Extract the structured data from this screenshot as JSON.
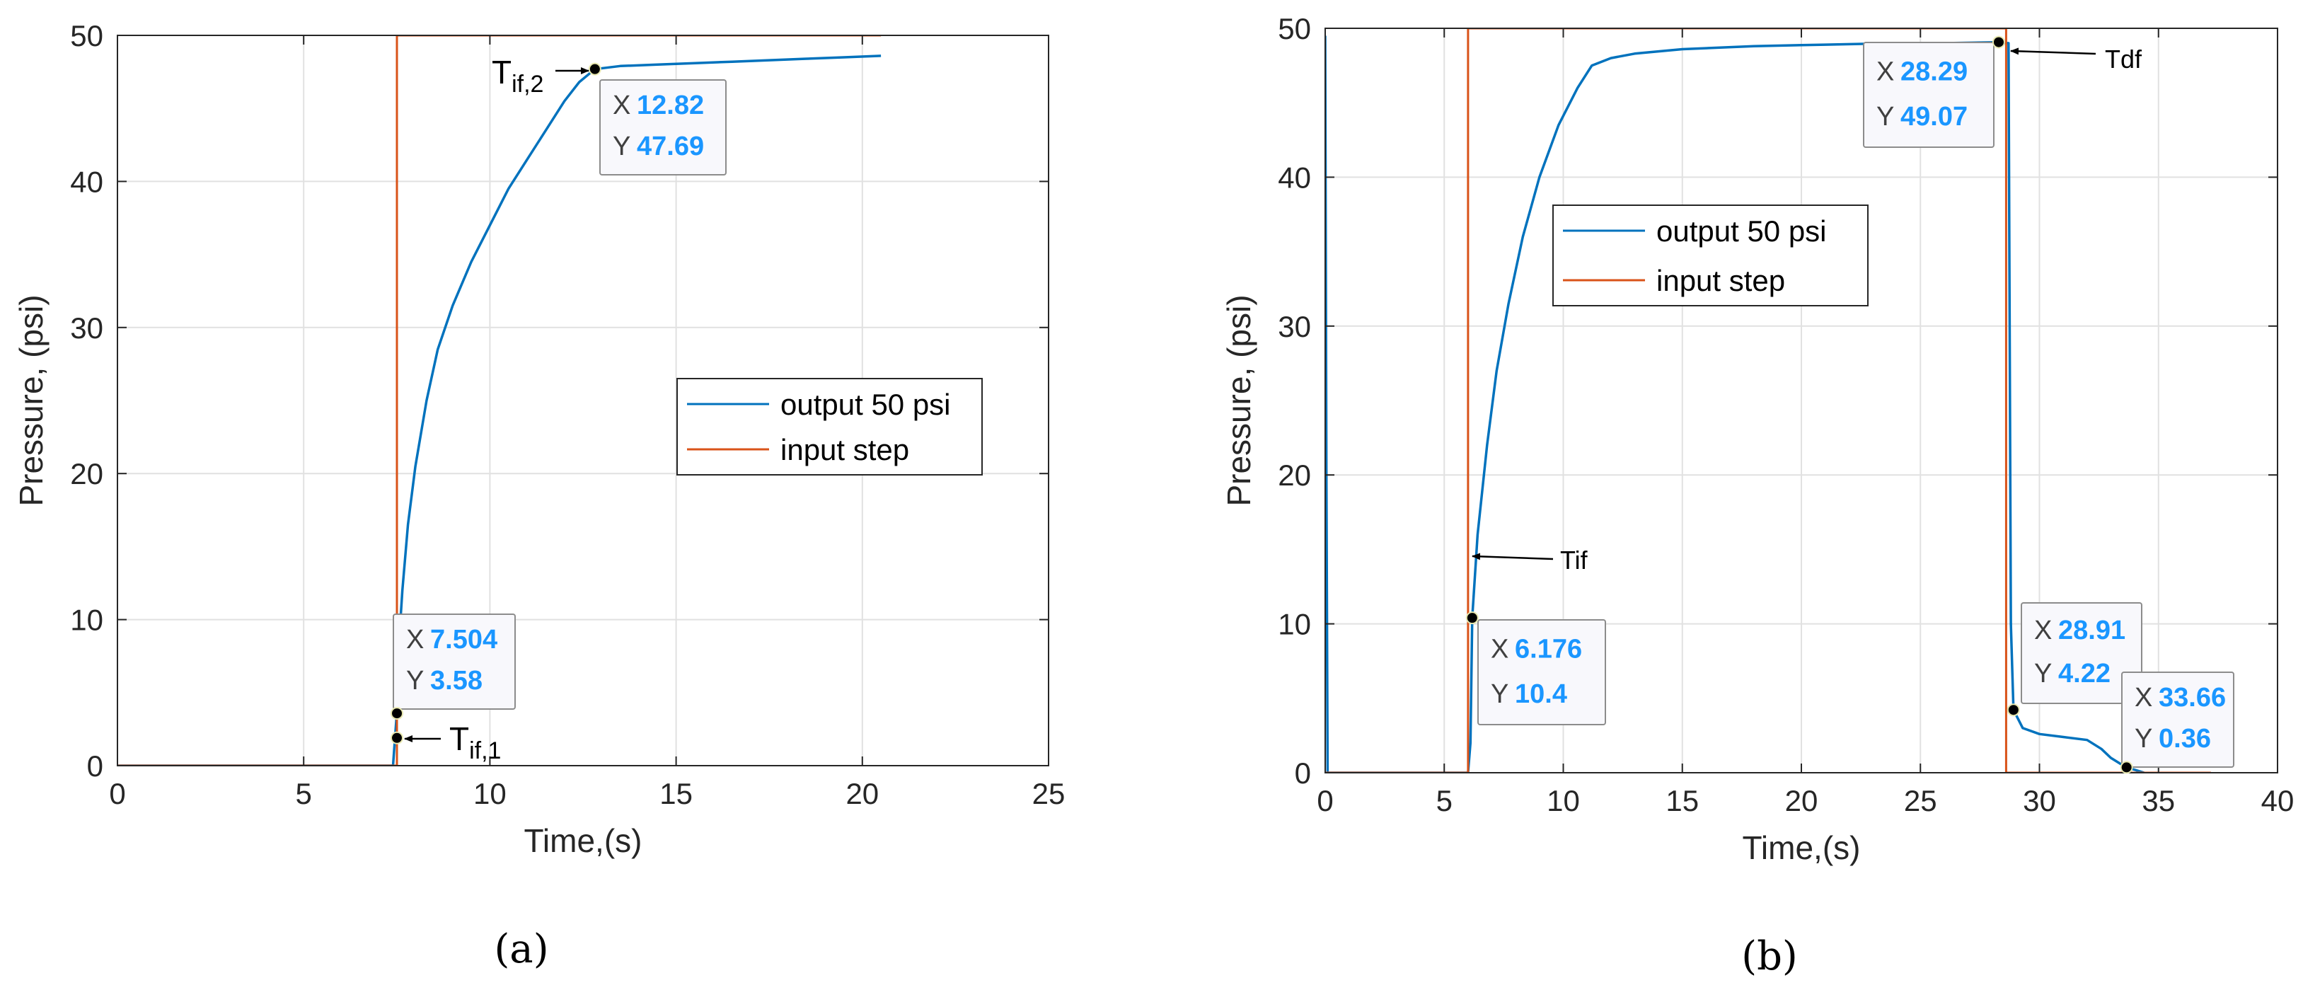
{
  "chart_data": [
    {
      "type": "line",
      "panel_label": "(a)",
      "xlabel": "Time,(s)",
      "ylabel": "Pressure, (psi)",
      "xlim": [
        0,
        25
      ],
      "ylim": [
        0,
        50
      ],
      "xticks": [
        0,
        5,
        10,
        15,
        20,
        25
      ],
      "yticks": [
        0,
        10,
        20,
        30,
        40,
        50
      ],
      "grid": true,
      "legend_position": "center-right",
      "colors": {
        "output": "#0072BD",
        "input": "#D95319",
        "datatip_value": "#1a96ff"
      },
      "series": [
        {
          "name": "output 50 psi",
          "x": [
            0,
            7.4,
            7.5,
            7.55,
            7.65,
            7.8,
            8.0,
            8.3,
            8.6,
            9.0,
            9.5,
            10.0,
            10.5,
            11.0,
            11.5,
            12.0,
            12.4,
            12.82,
            13.5,
            14.5,
            15.5,
            16.5,
            17.5,
            18.5,
            19.5,
            20.5
          ],
          "y": [
            0,
            0,
            3.58,
            8.0,
            12.0,
            16.5,
            20.5,
            25.0,
            28.5,
            31.5,
            34.5,
            37.0,
            39.5,
            41.5,
            43.5,
            45.5,
            46.8,
            47.69,
            47.9,
            48.0,
            48.1,
            48.2,
            48.3,
            48.4,
            48.5,
            48.6
          ]
        },
        {
          "name": "input step",
          "x": [
            0,
            7.504,
            7.504,
            20.5
          ],
          "y": [
            0,
            0,
            50,
            50
          ]
        }
      ],
      "datatips": [
        {
          "x_label": "X",
          "x": "12.82",
          "y_label": "Y",
          "y": "47.69"
        },
        {
          "x_label": "X",
          "x": "7.504",
          "y_label": "Y",
          "y": "3.58"
        }
      ],
      "markers": [
        {
          "x": 12.82,
          "y": 47.69
        },
        {
          "x": 7.504,
          "y": 3.58
        },
        {
          "x": 7.504,
          "y": 1.9
        }
      ],
      "annotations": [
        {
          "base": "T",
          "sub": "if,2"
        },
        {
          "base": "T",
          "sub": "if,1"
        }
      ]
    },
    {
      "type": "line",
      "panel_label": "(b)",
      "xlabel": "Time,(s)",
      "ylabel": "Pressure, (psi)",
      "xlim": [
        0,
        40
      ],
      "ylim": [
        0,
        50
      ],
      "xticks": [
        0,
        5,
        10,
        15,
        20,
        25,
        30,
        35,
        40
      ],
      "yticks": [
        0,
        10,
        20,
        30,
        40,
        50
      ],
      "grid": true,
      "legend_position": "upper-left",
      "colors": {
        "output": "#0072BD",
        "input": "#D95319",
        "datatip_value": "#1a96ff"
      },
      "series": [
        {
          "name": "output 50 psi",
          "x": [
            0,
            0.05,
            0.1,
            6.0,
            6.1,
            6.176,
            6.4,
            6.8,
            7.2,
            7.7,
            8.3,
            9.0,
            9.8,
            10.6,
            11.2,
            12.0,
            13.0,
            15.0,
            18.0,
            21.0,
            24.0,
            26.0,
            28.29,
            28.7,
            28.8,
            28.91,
            29.3,
            30.0,
            31.0,
            32.0,
            32.6,
            33.0,
            33.4,
            33.66,
            34.0,
            34.4
          ],
          "y": [
            49.5,
            20,
            0,
            0,
            2,
            10.4,
            16,
            22,
            27,
            31.5,
            36,
            40,
            43.5,
            46,
            47.5,
            48,
            48.3,
            48.6,
            48.8,
            48.9,
            49.0,
            49.0,
            49.07,
            49.0,
            10,
            4.22,
            3.0,
            2.6,
            2.4,
            2.2,
            1.6,
            1.0,
            0.6,
            0.36,
            0.2,
            0
          ]
        },
        {
          "name": "input step",
          "x": [
            0,
            6.0,
            6.0,
            28.6,
            28.6,
            37.2
          ],
          "y": [
            0,
            0,
            50,
            50,
            0,
            0
          ]
        }
      ],
      "datatips": [
        {
          "x_label": "X",
          "x": "28.29",
          "y_label": "Y",
          "y": "49.07"
        },
        {
          "x_label": "X",
          "x": "6.176",
          "y_label": "Y",
          "y": "10.4"
        },
        {
          "x_label": "X",
          "x": "28.91",
          "y_label": "Y",
          "y": "4.22"
        },
        {
          "x_label": "X",
          "x": "33.66",
          "y_label": "Y",
          "y": "0.36"
        }
      ],
      "markers": [
        {
          "x": 28.29,
          "y": 49.07
        },
        {
          "x": 6.176,
          "y": 10.4
        },
        {
          "x": 28.91,
          "y": 4.22
        },
        {
          "x": 33.66,
          "y": 0.36
        }
      ],
      "annotations": [
        {
          "text": "Tdf"
        },
        {
          "text": "Tif"
        }
      ]
    }
  ]
}
